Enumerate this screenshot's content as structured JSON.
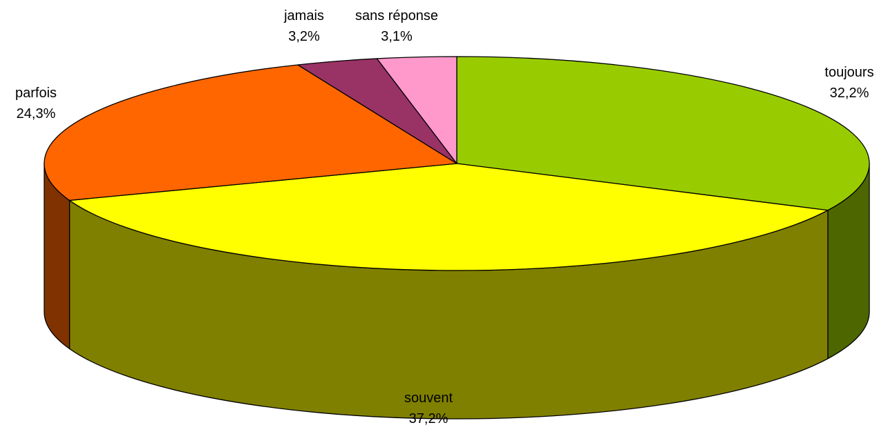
{
  "chart_data": {
    "type": "pie",
    "style": "3d",
    "start_angle_deg": 0,
    "direction": "clockwise",
    "slices": [
      {
        "category": "toujours",
        "value": 32.2,
        "label": "32,2%",
        "color": "#99CC00",
        "side_color": "#4D6600"
      },
      {
        "category": "souvent",
        "value": 37.2,
        "label": "37,2%",
        "color": "#FFFF00",
        "side_color": "#808000"
      },
      {
        "category": "parfois",
        "value": 24.3,
        "label": "24,3%",
        "color": "#FF6600",
        "side_color": "#803300"
      },
      {
        "category": "jamais",
        "value": 3.2,
        "label": "3,2%",
        "color": "#993366",
        "side_color": "#4D1A33"
      },
      {
        "category": "sans réponse",
        "value": 3.1,
        "label": "3,1%",
        "color": "#FF99CC",
        "side_color": "#804D66"
      }
    ],
    "legend": "none"
  }
}
